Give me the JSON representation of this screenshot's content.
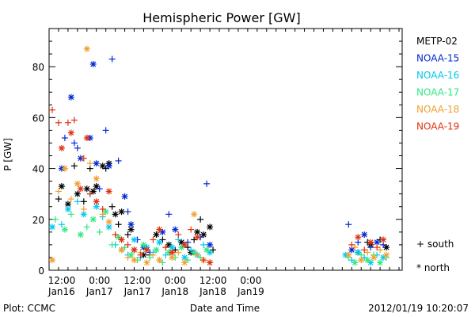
{
  "chart_data": {
    "type": "scatter",
    "title": "Hemispheric Power [GW]",
    "ylabel": "P [GW]",
    "xlabel": "Date and Time",
    "ylim": [
      0,
      95
    ],
    "y_ticks": [
      "0",
      "20",
      "40",
      "60",
      "80"
    ],
    "x_range_hours": [
      -16,
      96
    ],
    "x_ticks": [
      {
        "time": "12:00",
        "date": "Jan16"
      },
      {
        "time": "0:00",
        "date": "Jan17"
      },
      {
        "time": "12:00",
        "date": "Jan17"
      },
      {
        "time": "0:00",
        "date": "Jan18"
      },
      {
        "time": "12:00",
        "date": "Jan18"
      },
      {
        "time": "0:00",
        "date": "Jan19"
      }
    ],
    "series": [
      {
        "name": "METP-02",
        "color": "#000000",
        "points": [
          [
            -13,
            28,
            "+"
          ],
          [
            -12,
            33,
            "*"
          ],
          [
            -10,
            26,
            "*"
          ],
          [
            -8,
            41,
            "+"
          ],
          [
            -7,
            30,
            "*"
          ],
          [
            -5,
            27,
            "+"
          ],
          [
            -4,
            32,
            "*"
          ],
          [
            -3,
            40,
            "+"
          ],
          [
            -2,
            31,
            "*"
          ],
          [
            -1,
            33,
            "*"
          ],
          [
            1,
            41,
            "*"
          ],
          [
            2,
            40,
            "+"
          ],
          [
            3,
            42,
            "*"
          ],
          [
            4,
            25,
            "+"
          ],
          [
            5,
            22,
            "*"
          ],
          [
            6,
            18,
            "+"
          ],
          [
            7,
            23,
            "*"
          ],
          [
            9,
            14,
            "+"
          ],
          [
            10,
            16,
            "*"
          ],
          [
            11,
            8,
            "+"
          ],
          [
            14,
            6,
            "*"
          ],
          [
            16,
            6,
            "+"
          ],
          [
            18,
            14,
            "*"
          ],
          [
            20,
            12,
            "+"
          ],
          [
            22,
            10,
            "*"
          ],
          [
            24,
            8,
            "+"
          ],
          [
            26,
            11,
            "*"
          ],
          [
            28,
            9,
            "+"
          ],
          [
            29,
            7,
            "*"
          ],
          [
            30,
            12,
            "+"
          ],
          [
            31,
            15,
            "*"
          ],
          [
            32,
            20,
            "+"
          ],
          [
            33,
            14,
            "*"
          ],
          [
            35,
            17,
            "*"
          ],
          [
            36,
            8,
            "+"
          ],
          [
            82,
            7,
            "*"
          ],
          [
            85,
            11,
            "+"
          ],
          [
            86,
            10,
            "*"
          ],
          [
            89,
            12,
            "+"
          ],
          [
            91,
            9,
            "*"
          ]
        ]
      },
      {
        "name": "NOAA-15",
        "color": "#0028d0",
        "points": [
          [
            -12,
            40,
            "*"
          ],
          [
            -11,
            52,
            "+"
          ],
          [
            -9,
            68,
            "*"
          ],
          [
            -8,
            50,
            "+"
          ],
          [
            -7,
            48,
            "+"
          ],
          [
            -6,
            44,
            "*"
          ],
          [
            -3,
            52,
            "*"
          ],
          [
            -2,
            81,
            "*"
          ],
          [
            -1,
            42,
            "*"
          ],
          [
            0,
            32,
            "+"
          ],
          [
            2,
            55,
            "+"
          ],
          [
            3,
            41,
            "*"
          ],
          [
            4,
            83,
            "+"
          ],
          [
            6,
            43,
            "+"
          ],
          [
            8,
            29,
            "*"
          ],
          [
            9,
            23,
            "+"
          ],
          [
            10,
            18,
            "*"
          ],
          [
            12,
            12,
            "+"
          ],
          [
            14,
            9,
            "*"
          ],
          [
            16,
            7,
            "+"
          ],
          [
            20,
            15,
            "*"
          ],
          [
            22,
            22,
            "+"
          ],
          [
            24,
            16,
            "*"
          ],
          [
            28,
            11,
            "+"
          ],
          [
            30,
            7,
            "*"
          ],
          [
            32,
            13,
            "+"
          ],
          [
            34,
            34,
            "+"
          ],
          [
            35,
            10,
            "*"
          ],
          [
            79,
            18,
            "+"
          ],
          [
            80,
            8,
            "*"
          ],
          [
            82,
            11,
            "+"
          ],
          [
            84,
            14,
            "*"
          ],
          [
            86,
            9,
            "+"
          ],
          [
            88,
            11,
            "*"
          ],
          [
            90,
            10,
            "+"
          ]
        ]
      },
      {
        "name": "NOAA-16",
        "color": "#00c8f0",
        "points": [
          [
            -15,
            17,
            "*"
          ],
          [
            -12,
            18,
            "+"
          ],
          [
            -10,
            24,
            "*"
          ],
          [
            -7,
            27,
            "+"
          ],
          [
            -5,
            22,
            "*"
          ],
          [
            -3,
            30,
            "+"
          ],
          [
            -1,
            25,
            "*"
          ],
          [
            1,
            21,
            "+"
          ],
          [
            3,
            17,
            "*"
          ],
          [
            5,
            10,
            "+"
          ],
          [
            7,
            8,
            "*"
          ],
          [
            9,
            6,
            "+"
          ],
          [
            11,
            12,
            "*"
          ],
          [
            13,
            5,
            "+"
          ],
          [
            15,
            9,
            "*"
          ],
          [
            17,
            7,
            "+"
          ],
          [
            19,
            11,
            "*"
          ],
          [
            21,
            6,
            "+"
          ],
          [
            23,
            9,
            "*"
          ],
          [
            25,
            12,
            "+"
          ],
          [
            27,
            5,
            "*"
          ],
          [
            29,
            8,
            "+"
          ],
          [
            31,
            6,
            "*"
          ],
          [
            33,
            10,
            "+"
          ],
          [
            35,
            7,
            "*"
          ],
          [
            78,
            6,
            "*"
          ],
          [
            80,
            4,
            "+"
          ],
          [
            82,
            7,
            "*"
          ],
          [
            84,
            5,
            "+"
          ],
          [
            86,
            3,
            "*"
          ],
          [
            88,
            6,
            "+"
          ],
          [
            90,
            5,
            "*"
          ]
        ]
      },
      {
        "name": "NOAA-17",
        "color": "#30e880",
        "points": [
          [
            -14,
            20,
            "+"
          ],
          [
            -11,
            16,
            "*"
          ],
          [
            -9,
            22,
            "+"
          ],
          [
            -6,
            14,
            "*"
          ],
          [
            -4,
            17,
            "+"
          ],
          [
            -2,
            20,
            "*"
          ],
          [
            0,
            15,
            "+"
          ],
          [
            2,
            23,
            "*"
          ],
          [
            4,
            10,
            "+"
          ],
          [
            6,
            13,
            "*"
          ],
          [
            8,
            9,
            "+"
          ],
          [
            10,
            6,
            "*"
          ],
          [
            12,
            4,
            "+"
          ],
          [
            14,
            10,
            "*"
          ],
          [
            16,
            5,
            "+"
          ],
          [
            18,
            8,
            "*"
          ],
          [
            20,
            3,
            "+"
          ],
          [
            22,
            7,
            "*"
          ],
          [
            24,
            5,
            "+"
          ],
          [
            26,
            9,
            "*"
          ],
          [
            28,
            4,
            "+"
          ],
          [
            30,
            7,
            "*"
          ],
          [
            32,
            5,
            "+"
          ],
          [
            34,
            8,
            "*"
          ],
          [
            79,
            5,
            "+"
          ],
          [
            81,
            3,
            "*"
          ],
          [
            83,
            6,
            "+"
          ],
          [
            85,
            4,
            "*"
          ],
          [
            87,
            6,
            "+"
          ],
          [
            89,
            3,
            "*"
          ],
          [
            91,
            5,
            "+"
          ]
        ]
      },
      {
        "name": "NOAA-18",
        "color": "#f0a030",
        "points": [
          [
            -15,
            4,
            "*"
          ],
          [
            -13,
            31,
            "+"
          ],
          [
            -11,
            40,
            "*"
          ],
          [
            -9,
            28,
            "+"
          ],
          [
            -7,
            34,
            "*"
          ],
          [
            -5,
            24,
            "+"
          ],
          [
            -4,
            87,
            "*"
          ],
          [
            -3,
            42,
            "+"
          ],
          [
            -1,
            36,
            "*"
          ],
          [
            1,
            22,
            "+"
          ],
          [
            3,
            19,
            "*"
          ],
          [
            5,
            14,
            "+"
          ],
          [
            7,
            8,
            "*"
          ],
          [
            9,
            5,
            "+"
          ],
          [
            11,
            4,
            "*"
          ],
          [
            13,
            7,
            "+"
          ],
          [
            15,
            3,
            "*"
          ],
          [
            17,
            6,
            "+"
          ],
          [
            19,
            4,
            "*"
          ],
          [
            21,
            9,
            "+"
          ],
          [
            23,
            5,
            "*"
          ],
          [
            25,
            7,
            "+"
          ],
          [
            27,
            3,
            "*"
          ],
          [
            30,
            22,
            "*"
          ],
          [
            31,
            6,
            "+"
          ],
          [
            33,
            4,
            "*"
          ],
          [
            35,
            3,
            "+"
          ],
          [
            79,
            6,
            "*"
          ],
          [
            81,
            9,
            "+"
          ],
          [
            83,
            4,
            "*"
          ],
          [
            85,
            7,
            "+"
          ],
          [
            87,
            5,
            "*"
          ],
          [
            89,
            8,
            "+"
          ],
          [
            91,
            6,
            "*"
          ]
        ]
      },
      {
        "name": "NOAA-19",
        "color": "#e03010",
        "points": [
          [
            -15,
            63,
            "+"
          ],
          [
            -13,
            58,
            "+"
          ],
          [
            -12,
            48,
            "*"
          ],
          [
            -10,
            58,
            "+"
          ],
          [
            -9,
            54,
            "*"
          ],
          [
            -8,
            59,
            "+"
          ],
          [
            -6,
            32,
            "*"
          ],
          [
            -5,
            44,
            "+"
          ],
          [
            -4,
            52,
            "*"
          ],
          [
            -3,
            30,
            "+"
          ],
          [
            -1,
            27,
            "*"
          ],
          [
            1,
            24,
            "+"
          ],
          [
            3,
            31,
            "*"
          ],
          [
            5,
            14,
            "+"
          ],
          [
            7,
            12,
            "*"
          ],
          [
            9,
            10,
            "+"
          ],
          [
            11,
            8,
            "*"
          ],
          [
            13,
            6,
            "+"
          ],
          [
            15,
            8,
            "*"
          ],
          [
            17,
            12,
            "+"
          ],
          [
            19,
            16,
            "*"
          ],
          [
            21,
            9,
            "+"
          ],
          [
            23,
            7,
            "*"
          ],
          [
            25,
            14,
            "+"
          ],
          [
            27,
            10,
            "*"
          ],
          [
            29,
            16,
            "+"
          ],
          [
            31,
            13,
            "*"
          ],
          [
            33,
            4,
            "+"
          ],
          [
            35,
            3,
            "*"
          ],
          [
            80,
            10,
            "+"
          ],
          [
            82,
            13,
            "*"
          ],
          [
            84,
            8,
            "+"
          ],
          [
            86,
            11,
            "*"
          ],
          [
            88,
            9,
            "+"
          ],
          [
            90,
            12,
            "*"
          ]
        ]
      }
    ],
    "symbols": [
      {
        "glyph": "+",
        "label": "south"
      },
      {
        "glyph": "*",
        "label": "north"
      }
    ]
  },
  "footer": {
    "left": "Plot: CCMC",
    "right": "2012/01/19 10:20:07"
  }
}
